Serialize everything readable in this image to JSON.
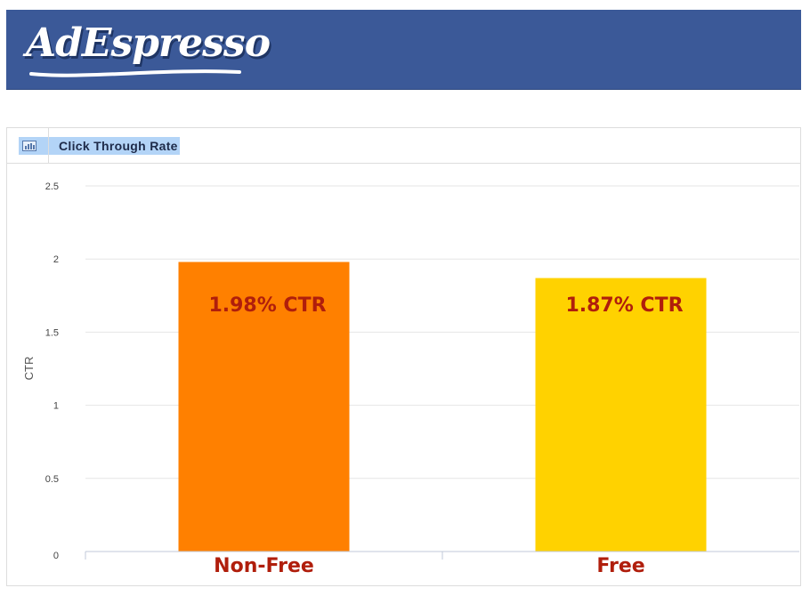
{
  "header": {
    "logo_text": "AdEspresso",
    "background_color": "#3b5998"
  },
  "panel": {
    "title": "Click Through Rate",
    "icon": "bar-chart-icon"
  },
  "chart_data": {
    "type": "bar",
    "categories": [
      "Non-Free",
      "Free"
    ],
    "values": [
      1.98,
      1.87
    ],
    "bar_labels": [
      "1.98% CTR",
      "1.87% CTR"
    ],
    "colors": [
      "#ff8000",
      "#ffd200"
    ],
    "title": "Click Through Rate",
    "xlabel": "",
    "ylabel": "CTR",
    "ylim": [
      0,
      2.5
    ],
    "yticks": [
      "0",
      "0.5",
      "1",
      "1.5",
      "2",
      "2.5"
    ],
    "grid": true,
    "legend": "none"
  }
}
